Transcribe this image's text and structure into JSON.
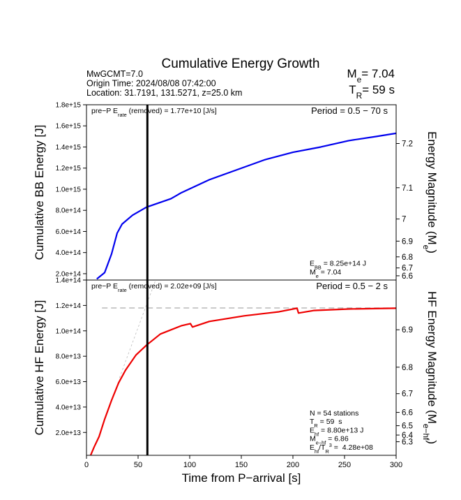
{
  "header": {
    "title": "Cumulative Energy Growth",
    "info": [
      "MwGCMT=7.0",
      "Origin Time: 2024/08/08 07:42:00",
      "Location: 31.7191, 131.5271, z=25.0 km"
    ],
    "summary": [
      [
        "M",
        {
          "sub": "e"
        },
        "= 7.04"
      ],
      [
        "T",
        {
          "sub": "R"
        },
        "= 59 s"
      ]
    ]
  },
  "chart_data": [
    {
      "type": "line",
      "ylabel": "Cumulative BB Energy [J]",
      "y2label": [
        "Energy Magnitude (M",
        {
          "sub": "e"
        },
        ")"
      ],
      "note": [
        "pre−P E",
        {
          "sub": "rate"
        },
        " (removed) = 1.77e+10 [J/s]"
      ],
      "period": "Period = 0.5 − 70 s",
      "stats": [
        [
          "E",
          {
            "sub": "BB"
          },
          " = 8.25e+14 J"
        ],
        [
          "M",
          {
            "sub": "e"
          },
          " = 7.04"
        ]
      ],
      "color": "#0000ee",
      "x": [
        10,
        17.6,
        24.3,
        29.7,
        34.5,
        44.6,
        58.1,
        81.8,
        91.9,
        119,
        146,
        173,
        200,
        227,
        254,
        281,
        300
      ],
      "values": [
        150000000000000.0,
        210000000000000.0,
        387000000000000.0,
        584000000000000.0,
        670000000000000.0,
        754000000000000.0,
        830000000000000.0,
        910000000000000.0,
        967000000000000.0,
        1090000000000000.0,
        1185000000000000.0,
        1280000000000000.0,
        1350000000000000.0,
        1400000000000000.0,
        1460000000000000.0,
        1500000000000000.0,
        1530000000000000.0
      ],
      "xlim": [
        0,
        300
      ],
      "ylim": [
        140000000000000.0,
        1800000000000000.0
      ],
      "yticks": [
        {
          "value": 1800000000000000.0,
          "label": "1.8e+15"
        },
        {
          "value": 1600000000000000.0,
          "label": "1.6e+15"
        },
        {
          "value": 1400000000000000.0,
          "label": "1.4e+15"
        },
        {
          "value": 1200000000000000.0,
          "label": "1.2e+15"
        },
        {
          "value": 1000000000000000.0,
          "label": "1.0e+15"
        },
        {
          "value": 800000000000000.0,
          "label": "8.0e+14"
        },
        {
          "value": 600000000000000.0,
          "label": "6.0e+14"
        },
        {
          "value": 400000000000000.0,
          "label": "4.0e+14"
        },
        {
          "value": 200000000000000.0,
          "label": "2.0e+14"
        },
        {
          "value": 140000000000000.0,
          "label": "1.4e+14"
        }
      ],
      "y2_scale": "magnitude",
      "y2lim": [
        6.527,
        7.266
      ],
      "y2ticks": [
        7.2,
        7.1,
        7.0,
        6.9,
        6.8,
        6.7,
        6.6
      ],
      "vline_x": 59
    },
    {
      "type": "line",
      "ylabel": "Cumulative HF Energy [J]",
      "y2label": [
        "HF Energy Magnitude (M",
        {
          "sub": "e−hf"
        },
        ")"
      ],
      "xlabel": "Time from P−arrival [s]",
      "note": [
        "pre−P E",
        {
          "sub": "rate"
        },
        " (removed) = 2.02e+09 [J/s]"
      ],
      "period": "Period = 0.5 − 2 s",
      "stats": [
        [
          "N = 54 stations"
        ],
        [
          "T",
          {
            "sub": "R"
          },
          " = 59  s"
        ],
        [
          "E",
          {
            "sub": "hf"
          },
          " = 8.80e+13 J"
        ],
        [
          "M",
          {
            "sub": "e−hf"
          },
          " = 6.86"
        ],
        [
          "E",
          {
            "sub": "hf"
          },
          "/T",
          {
            "sub": "R"
          },
          {
            "sup": "3"
          },
          " =  4.28e+08"
        ]
      ],
      "color": "#ee0000",
      "x": [
        4,
        7.4,
        12.2,
        17.6,
        24.3,
        31.1,
        37.8,
        48,
        58.1,
        71.6,
        91.9,
        100.7,
        102.7,
        119,
        152.7,
        186.5,
        204,
        205.4,
        220,
        254,
        300
      ],
      "values": [
        2000000000000.0,
        8500000000000.0,
        16700000000000.0,
        30400000000000.0,
        45300000000000.0,
        59000000000000.0,
        69000000000000.0,
        81000000000000.0,
        88700000000000.0,
        97500000000000.0,
        104000000000000.0,
        105700000000000.0,
        103000000000000.0,
        107400000000000.0,
        111800000000000.0,
        115000000000000.0,
        117800000000000.0,
        114000000000000.0,
        116000000000000.0,
        117200000000000.0,
        117800000000000.0
      ],
      "guides": [
        {
          "x": [
            15,
            300
          ],
          "values": [
            118000000000000.0,
            118000000000000.0
          ]
        },
        {
          "x": [
            32,
            67
          ],
          "values": [
            63000000000000.0,
            140000000000000.0
          ]
        }
      ],
      "xlim": [
        0,
        300
      ],
      "xticks": [
        0,
        50,
        100,
        150,
        200,
        250,
        300
      ],
      "ylim": [
        2000000000000.0,
        140000000000000.0
      ],
      "yticks": [
        {
          "value": 120000000000000.0,
          "label": "1.2e+14"
        },
        {
          "value": 100000000000000.0,
          "label": "1.0e+14"
        },
        {
          "value": 80000000000000.0,
          "label": "8.0e+13"
        },
        {
          "value": 60000000000000.0,
          "label": "6.0e+13"
        },
        {
          "value": 40000000000000.0,
          "label": "4.0e+13"
        },
        {
          "value": 20000000000000.0,
          "label": "2.0e+13"
        }
      ],
      "y2_scale": "magnitude",
      "y2lim": [
        5.765,
        6.995
      ],
      "y2ticks": [
        6.9,
        6.8,
        6.7,
        6.6,
        6.5,
        6.4,
        6.3
      ],
      "vline_x": 59
    }
  ]
}
